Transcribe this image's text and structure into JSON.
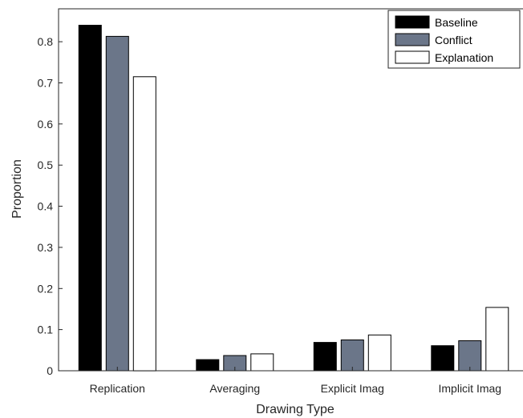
{
  "chart_data": {
    "type": "bar",
    "title": "",
    "xlabel": "Drawing Type",
    "ylabel": "Proportion",
    "ylim": [
      0,
      0.88
    ],
    "yticks": [
      0,
      0.1,
      0.2,
      0.3,
      0.4,
      0.5,
      0.6,
      0.7,
      0.8
    ],
    "ytick_labels": [
      "0",
      "0.1",
      "0.2",
      "0.3",
      "0.4",
      "0.5",
      "0.6",
      "0.7",
      "0.8"
    ],
    "grid": false,
    "legend_position": "top-right",
    "categories": [
      "Replication",
      "Averaging",
      "Explicit Imag",
      "Implicit Imag"
    ],
    "series": [
      {
        "name": "Baseline",
        "color": "#000000",
        "values": [
          0.84,
          0.027,
          0.069,
          0.061
        ]
      },
      {
        "name": "Conflict",
        "color": "#6b7689",
        "values": [
          0.813,
          0.037,
          0.075,
          0.073
        ]
      },
      {
        "name": "Explanation",
        "color": "#ffffff",
        "values": [
          0.715,
          0.041,
          0.087,
          0.154
        ]
      }
    ]
  }
}
